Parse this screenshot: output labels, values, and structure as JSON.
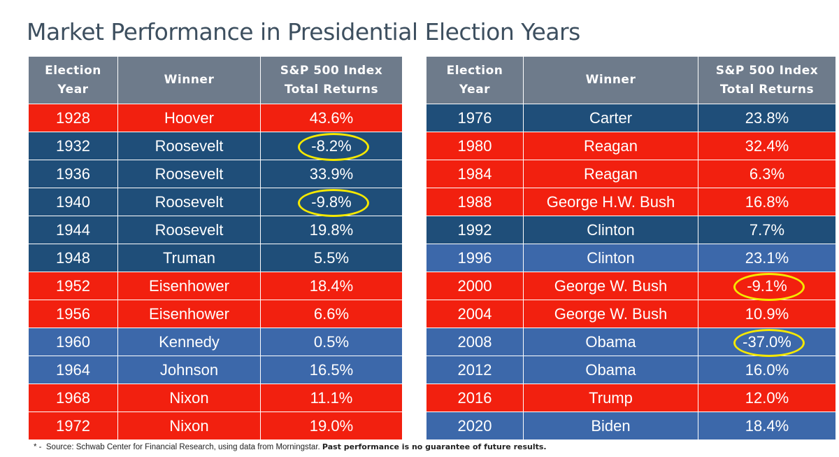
{
  "title": "Market Performance in Presidential Election Years",
  "tables": [
    {
      "header": [
        [
          "Election",
          "Year"
        ],
        [
          "Winner"
        ],
        [
          "S&P 500 Index",
          "Total Returns"
        ]
      ],
      "rows": [
        {
          "cells": [
            "1928",
            "Hoover",
            "43.6%"
          ],
          "color": "#f2200f"
        },
        {
          "cells": [
            "1932",
            "Roosevelt",
            "-8.2%"
          ],
          "color": "#1f4e79",
          "circled": true
        },
        {
          "cells": [
            "1936",
            "Roosevelt",
            "33.9%"
          ],
          "color": "#1f4e79"
        },
        {
          "cells": [
            "1940",
            "Roosevelt",
            "-9.8%"
          ],
          "color": "#1f4e79",
          "circled": true
        },
        {
          "cells": [
            "1944",
            "Roosevelt",
            "19.8%"
          ],
          "color": "#1f4e79"
        },
        {
          "cells": [
            "1948",
            "Truman",
            "5.5%"
          ],
          "color": "#1f4e79"
        },
        {
          "cells": [
            "1952",
            "Eisenhower",
            "18.4%"
          ],
          "color": "#f2200f"
        },
        {
          "cells": [
            "1956",
            "Eisenhower",
            "6.6%"
          ],
          "color": "#f2200f"
        },
        {
          "cells": [
            "1960",
            "Kennedy",
            "0.5%"
          ],
          "color": "#3c68aa"
        },
        {
          "cells": [
            "1964",
            "Johnson",
            "16.5%"
          ],
          "color": "#3c68aa"
        },
        {
          "cells": [
            "1968",
            "Nixon",
            "11.1%"
          ],
          "color": "#f2200f"
        },
        {
          "cells": [
            "1972",
            "Nixon",
            "19.0%"
          ],
          "color": "#f2200f"
        }
      ]
    },
    {
      "header": [
        [
          "Election",
          "Year"
        ],
        [
          "Winner"
        ],
        [
          "S&P 500 Index",
          "Total Returns"
        ]
      ],
      "rows": [
        {
          "cells": [
            "1976",
            "Carter",
            "23.8%"
          ],
          "color": "#1f4e79"
        },
        {
          "cells": [
            "1980",
            "Reagan",
            "32.4%"
          ],
          "color": "#f2200f"
        },
        {
          "cells": [
            "1984",
            "Reagan",
            "6.3%"
          ],
          "color": "#f2200f"
        },
        {
          "cells": [
            "1988",
            "George H.W. Bush",
            "16.8%"
          ],
          "color": "#f2200f"
        },
        {
          "cells": [
            "1992",
            "Clinton",
            "7.7%"
          ],
          "color": "#1f4e79"
        },
        {
          "cells": [
            "1996",
            "Clinton",
            "23.1%"
          ],
          "color": "#3c68aa"
        },
        {
          "cells": [
            "2000",
            "George W. Bush",
            "-9.1%"
          ],
          "color": "#f2200f",
          "circled": true
        },
        {
          "cells": [
            "2004",
            "George W. Bush",
            "10.9%"
          ],
          "color": "#f2200f"
        },
        {
          "cells": [
            "2008",
            "Obama",
            "-37.0%"
          ],
          "color": "#3c68aa",
          "circled": true
        },
        {
          "cells": [
            "2012",
            "Obama",
            "16.0%"
          ],
          "color": "#3c68aa"
        },
        {
          "cells": [
            "2016",
            "Trump",
            "12.0%"
          ],
          "color": "#f2200f"
        },
        {
          "cells": [
            "2020",
            "Biden",
            "18.4%"
          ],
          "color": "#3c68aa"
        }
      ]
    }
  ],
  "footnote": {
    "marker": "* -",
    "source": "Source: Schwab Center for Financial Research, using data from Morningstar.",
    "disclaimer": "Past performance is no guarantee of future results."
  }
}
